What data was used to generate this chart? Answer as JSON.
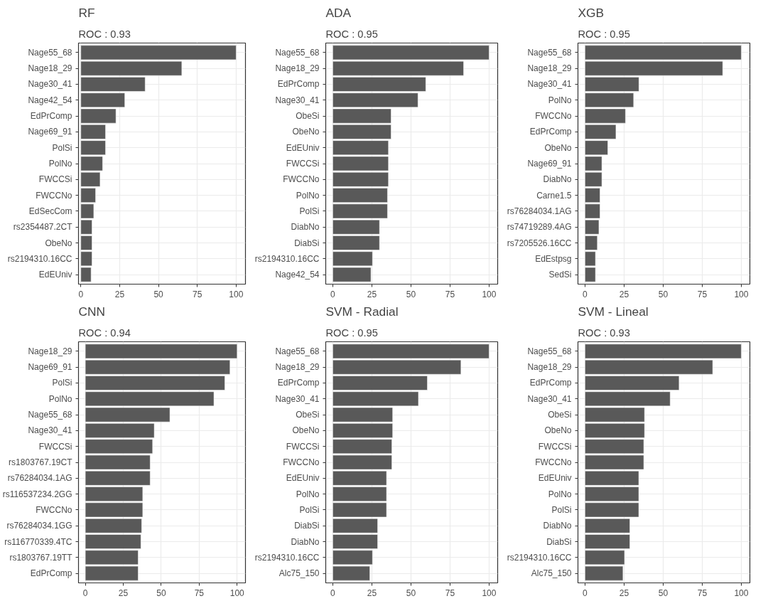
{
  "chart_data": [
    {
      "type": "bar",
      "orientation": "horizontal",
      "title": "RF",
      "subtitle": "ROC : 0.93",
      "color": "#595959",
      "grid": true,
      "xlim": [
        -1.5,
        106
      ],
      "xticks": [
        0,
        25,
        50,
        75,
        100
      ],
      "categories": [
        "Nage55_68",
        "Nage18_29",
        "Nage30_41",
        "Nage42_54",
        "EdPrComp",
        "Nage69_91",
        "PolSi",
        "PolNo",
        "FWCCSi",
        "FWCCNo",
        "EdSecCom",
        "rs2354487.2CT",
        "ObeNo",
        "rs2194310.16CC",
        "EdEUniv"
      ],
      "values": [
        100,
        65,
        41.4,
        28.3,
        22.6,
        15.9,
        15.9,
        14,
        12.4,
        9.5,
        8.3,
        7.2,
        7.2,
        7.2,
        6.6
      ]
    },
    {
      "type": "bar",
      "orientation": "horizontal",
      "title": "ADA",
      "subtitle": "ROC : 0.95",
      "color": "#595959",
      "grid": true,
      "xlim": [
        -4.5,
        105.5
      ],
      "xticks": [
        0,
        25,
        50,
        75,
        100
      ],
      "categories": [
        "Nage55_68",
        "Nage18_29",
        "EdPrComp",
        "Nage30_41",
        "ObeSi",
        "ObeNo",
        "EdEUniv",
        "FWCCSi",
        "FWCCNo",
        "PolNo",
        "PolSi",
        "DiabNo",
        "DiabSi",
        "rs2194310.16CC",
        "Nage42_54"
      ],
      "values": [
        100,
        83.7,
        59.5,
        54.5,
        37.3,
        37.3,
        35.6,
        35.6,
        35.6,
        35,
        35,
        29.9,
        29.9,
        25.4,
        24.4
      ]
    },
    {
      "type": "bar",
      "orientation": "horizontal",
      "title": "XGB",
      "subtitle": "ROC : 0.95",
      "color": "#595959",
      "grid": true,
      "xlim": [
        -4.5,
        105.5
      ],
      "xticks": [
        0,
        25,
        50,
        75,
        100
      ],
      "categories": [
        "Nage55_68",
        "Nage18_29",
        "Nage30_41",
        "PolNo",
        "FWCCNo",
        "EdPrComp",
        "ObeNo",
        "Nage69_91",
        "DiabNo",
        "Carne1.5",
        "rs76284034.1AG",
        "rs74719289.4AG",
        "rs7205526.16CC",
        "EdEstpsg",
        "SedSi"
      ],
      "values": [
        100,
        88.1,
        34.5,
        31.1,
        25.9,
        19.8,
        14.6,
        10.8,
        10.8,
        9.6,
        9.6,
        8.9,
        7.9,
        6.7,
        6.7
      ]
    },
    {
      "type": "bar",
      "orientation": "horizontal",
      "title": "CNN",
      "subtitle": "ROC : 0.94",
      "color": "#595959",
      "grid": true,
      "xlim": [
        -4.5,
        105.5
      ],
      "xticks": [
        0,
        25,
        50,
        75,
        100
      ],
      "categories": [
        "Nage18_29",
        "Nage69_91",
        "PolSi",
        "PolNo",
        "Nage55_68",
        "Nage30_41",
        "FWCCSi",
        "rs1803767.19CT",
        "rs76284034.1AG",
        "rs116537234.2GG",
        "FWCCNo",
        "rs76284034.1GG",
        "rs116770339.4TC",
        "rs1803767.19TT",
        "EdPrComp"
      ],
      "values": [
        100,
        95.3,
        91.9,
        84.7,
        55.7,
        45.4,
        44.3,
        42.7,
        42.7,
        37.8,
        37.8,
        37.1,
        36.6,
        34.8,
        34.8
      ]
    },
    {
      "type": "bar",
      "orientation": "horizontal",
      "title": "SVM - Radial",
      "subtitle": "ROC : 0.95",
      "color": "#595959",
      "grid": true,
      "xlim": [
        -4.5,
        105.5
      ],
      "xticks": [
        0,
        25,
        50,
        75,
        100
      ],
      "categories": [
        "Nage55_68",
        "Nage18_29",
        "EdPrComp",
        "Nage30_41",
        "ObeSi",
        "ObeNo",
        "FWCCSi",
        "FWCCNo",
        "EdEUniv",
        "PolNo",
        "PolSi",
        "DiabSi",
        "DiabNo",
        "rs2194310.16CC",
        "Alc75_150"
      ],
      "values": [
        100,
        82,
        60.5,
        54.8,
        38.3,
        38.3,
        37.8,
        37.8,
        34.4,
        34.4,
        34.4,
        28.7,
        28.7,
        25.4,
        23.7
      ]
    },
    {
      "type": "bar",
      "orientation": "horizontal",
      "title": "SVM - Lineal",
      "subtitle": "ROC : 0.93",
      "color": "#595959",
      "grid": true,
      "xlim": [
        -4.5,
        105.5
      ],
      "xticks": [
        0,
        25,
        50,
        75,
        100
      ],
      "categories": [
        "Nage55_68",
        "Nage18_29",
        "EdPrComp",
        "Nage30_41",
        "ObeSi",
        "ObeNo",
        "FWCCSi",
        "FWCCNo",
        "EdEUniv",
        "PolNo",
        "PolSi",
        "DiabNo",
        "DiabSi",
        "rs2194310.16CC",
        "Alc75_150"
      ],
      "values": [
        100,
        81.7,
        60.2,
        54.5,
        38.1,
        38.1,
        37.6,
        37.6,
        34.4,
        34.4,
        34.4,
        28.7,
        28.7,
        25.3,
        24.3
      ]
    }
  ]
}
